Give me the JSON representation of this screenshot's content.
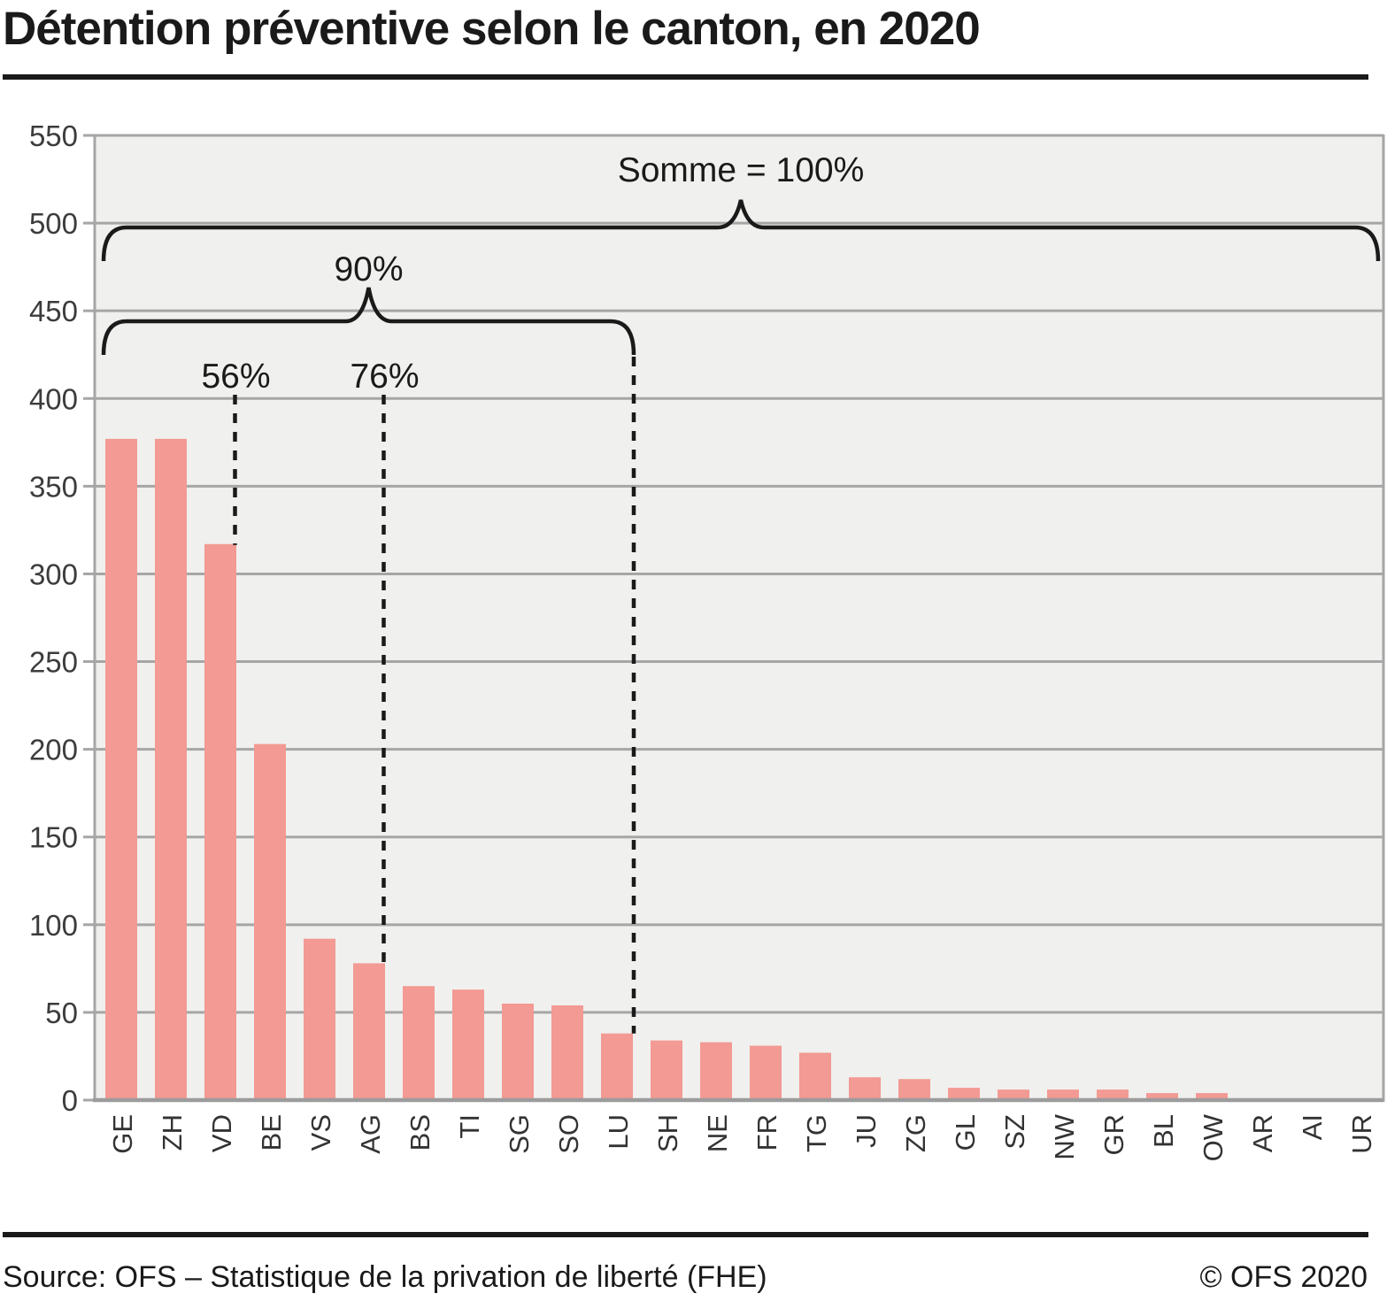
{
  "title": "Détention préventive selon le canton, en 2020",
  "footer": {
    "source": "Source: OFS – Statistique de la privation de liberté (FHE)",
    "copyright": "© OFS 2020"
  },
  "chart_data": {
    "type": "bar",
    "title": "Détention préventive selon le canton, en 2020",
    "categories": [
      "GE",
      "ZH",
      "VD",
      "BE",
      "VS",
      "AG",
      "BS",
      "TI",
      "SG",
      "SO",
      "LU",
      "SH",
      "NE",
      "FR",
      "TG",
      "JU",
      "ZG",
      "GL",
      "SZ",
      "NW",
      "GR",
      "BL",
      "OW",
      "AR",
      "AI",
      "UR"
    ],
    "values": [
      377,
      377,
      317,
      203,
      92,
      78,
      65,
      63,
      55,
      54,
      38,
      34,
      33,
      31,
      27,
      13,
      12,
      7,
      6,
      6,
      6,
      4,
      4,
      1,
      0,
      0
    ],
    "xlabel": "",
    "ylabel": "",
    "ylim": [
      0,
      550
    ],
    "ytick_step": 50,
    "grid": true,
    "legend": "none",
    "annotations": [
      {
        "type": "brace",
        "label": "Somme = 100%",
        "from": "GE",
        "to": "UR"
      },
      {
        "type": "brace",
        "label": "90%",
        "from": "GE",
        "to": "LU"
      },
      {
        "type": "marker",
        "label": "56%",
        "at": "VD"
      },
      {
        "type": "marker",
        "label": "76%",
        "at": "AG"
      }
    ],
    "colors": {
      "bar": "#f29a93",
      "plot_background": "#f0f0ee",
      "grid": "#a6a6a6",
      "baseline": "#9c9c9c",
      "annotation_line": "#1a1a1a",
      "axis_text": "#3c3c3c",
      "category_text": "#333333",
      "title_text": "#1a1a1a"
    }
  }
}
